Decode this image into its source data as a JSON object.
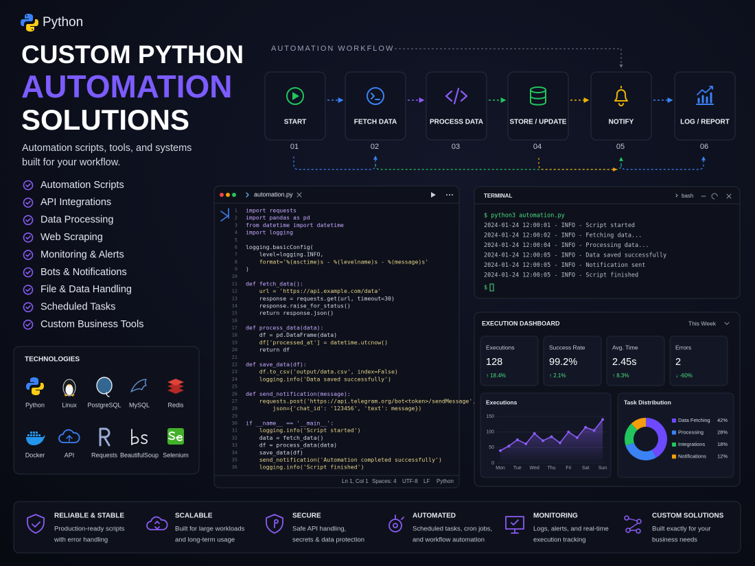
{
  "brand": "Python",
  "hero": {
    "title": [
      "CUSTOM PYTHON",
      "AUTOMATION",
      "SOLUTIONS"
    ],
    "subtitle": [
      "Automation scripts, tools, and systems",
      "built for your workflow."
    ]
  },
  "features": [
    "Automation Scripts",
    "API Integrations",
    "Data Processing",
    "Web Scraping",
    "Monitoring & Alerts",
    "Bots & Notifications",
    "File & Data Handling",
    "Scheduled Tasks",
    "Custom Business Tools"
  ],
  "technologies": {
    "title": "TECHNOLOGIES",
    "items": [
      "Python",
      "Linux",
      "PostgreSQL",
      "MySQL",
      "Redis",
      "Docker",
      "API",
      "Requests",
      "BeautifulSoup",
      "Selenium"
    ]
  },
  "workflow": {
    "title": "AUTOMATION WORKFLOW",
    "steps": [
      {
        "label": "START",
        "number": "01"
      },
      {
        "label": "FETCH DATA",
        "number": "02"
      },
      {
        "label": "PROCESS DATA",
        "number": "03"
      },
      {
        "label": "STORE / UPDATE",
        "number": "04"
      },
      {
        "label": "NOTIFY",
        "number": "05"
      },
      {
        "label": "LOG / REPORT",
        "number": "06"
      }
    ]
  },
  "editor": {
    "tab": "automation.py",
    "lines": [
      {
        "n": 1,
        "code": "import requests"
      },
      {
        "n": 2,
        "code": "import pandas as pd"
      },
      {
        "n": 3,
        "code": "from datetime import datetime"
      },
      {
        "n": 4,
        "code": "import logging"
      },
      {
        "n": 5
      },
      {
        "n": 6,
        "code": "logging.basicConfig("
      },
      {
        "n": 7,
        "code": "    level=logging.INFO,"
      },
      {
        "n": 8,
        "code": "    format='%(asctime)s - %(levelname)s - %(message)s'"
      },
      {
        "n": 9,
        "code": ")"
      },
      {
        "n": 10
      },
      {
        "n": 11,
        "code": "def fetch_data():"
      },
      {
        "n": 12,
        "code": "    url = 'https://api.example.com/data'"
      },
      {
        "n": 13,
        "code": "    response = requests.get(url, timeout=30)"
      },
      {
        "n": 14,
        "code": "    response.raise_for_status()"
      },
      {
        "n": 15,
        "code": "    return response.json()"
      },
      {
        "n": 16
      },
      {
        "n": 17,
        "code": "def process_data(data):"
      },
      {
        "n": 18,
        "code": "    df = pd.DataFrame(data)"
      },
      {
        "n": 19,
        "code": "    df['processed_at'] = datetime.utcnow()"
      },
      {
        "n": 20,
        "code": "    return df"
      },
      {
        "n": 21
      },
      {
        "n": 22,
        "code": "def save_data(df):"
      },
      {
        "n": 23,
        "code": "    df.to_csv('output/data.csv', index=False)"
      },
      {
        "n": 24,
        "code": "    logging.info('Data saved successfully')"
      },
      {
        "n": 25
      },
      {
        "n": 26,
        "code": "def send_notification(message):"
      },
      {
        "n": 27,
        "code": "    requests.post('https://api.telegram.org/bot<token>/sendMessage',"
      },
      {
        "n": 28,
        "code": "        json={'chat_id': '123456', 'text': message})"
      },
      {
        "n": 29
      },
      {
        "n": 30,
        "code": "if __name__ == '__main__':"
      },
      {
        "n": 31,
        "code": "    logging.info('Script started')"
      },
      {
        "n": 32,
        "code": "    data = fetch_data()"
      },
      {
        "n": 33,
        "code": "    df = process_data(data)"
      },
      {
        "n": 34,
        "code": "    save_data(df)"
      },
      {
        "n": 35,
        "code": "    send_notification('Automation completed successfully')"
      },
      {
        "n": 36,
        "code": "    logging.info('Script finished')"
      }
    ],
    "status": [
      "Ln 1, Col 1",
      "Spaces: 4",
      "UTF-8",
      "LF",
      "Python"
    ]
  },
  "terminal": {
    "title": "TERMINAL",
    "shell": "bash",
    "lines": [
      "$ python3 automation.py",
      "2024-01-24 12:00:01 - INFO - Script started",
      "2024-01-24 12:00:02 - INFO - Fetching data...",
      "2024-01-24 12:00:04 - INFO - Processing data...",
      "2024-01-24 12:00:05 - INFO - Data saved successfully",
      "2024-01-24 12:00:05 - INFO - Notification sent",
      "2024-01-24 12:00:05 - INFO - Script finished"
    ],
    "prompt": "$"
  },
  "dashboard": {
    "title": "EXECUTION DASHBOARD",
    "period": "This Week",
    "stats": [
      {
        "label": "Executions",
        "value": "128",
        "change": "↑ 18.4%"
      },
      {
        "label": "Success Rate",
        "value": "99.2%",
        "change": "↑ 2.1%"
      },
      {
        "label": "Avg. Time",
        "value": "2.45s",
        "change": "↑ 8.3%"
      },
      {
        "label": "Errors",
        "value": "2",
        "change": "↓ -60%"
      }
    ],
    "executions_chart": {
      "type": "line",
      "title": "Executions",
      "categories": [
        "Mon",
        null,
        "Tue",
        null,
        "Wed",
        null,
        "Thu",
        null,
        "Fri",
        null,
        "Sat",
        null,
        "Sun"
      ],
      "values": [
        40,
        55,
        75,
        62,
        95,
        72,
        85,
        65,
        100,
        82,
        115,
        105,
        140
      ],
      "ylim": [
        0,
        150
      ],
      "yticks": [
        0,
        50,
        100,
        150
      ],
      "color": "#8b5cf6",
      "grid": true
    },
    "task_distribution": {
      "type": "donut",
      "title": "Task Distribution",
      "categories": [
        "Data Fetching",
        "Processing",
        "Integrations",
        "Notifications"
      ],
      "values": [
        42,
        28,
        18,
        12
      ],
      "value_labels": [
        "42%",
        "28%",
        "18%",
        "12%"
      ],
      "colors": [
        "#6d4aff",
        "#3b82f6",
        "#22c55e",
        "#f59e0b"
      ]
    }
  },
  "benefits": [
    {
      "title": "RELIABLE & STABLE",
      "lines": [
        "Production-ready scripts",
        "with error handling"
      ]
    },
    {
      "title": "SCALABLE",
      "lines": [
        "Built for large workloads",
        "and long-term usage"
      ]
    },
    {
      "title": "SECURE",
      "lines": [
        "Safe API handling,",
        "secrets & data protection"
      ]
    },
    {
      "title": "AUTOMATED",
      "lines": [
        "Scheduled tasks, cron jobs,",
        "and workflow automation"
      ]
    },
    {
      "title": "MONITORING",
      "lines": [
        "Logs, alerts, and real-time",
        "execution tracking"
      ]
    },
    {
      "title": "CUSTOM SOLUTIONS",
      "lines": [
        "Built exactly for your",
        "business needs"
      ]
    }
  ]
}
